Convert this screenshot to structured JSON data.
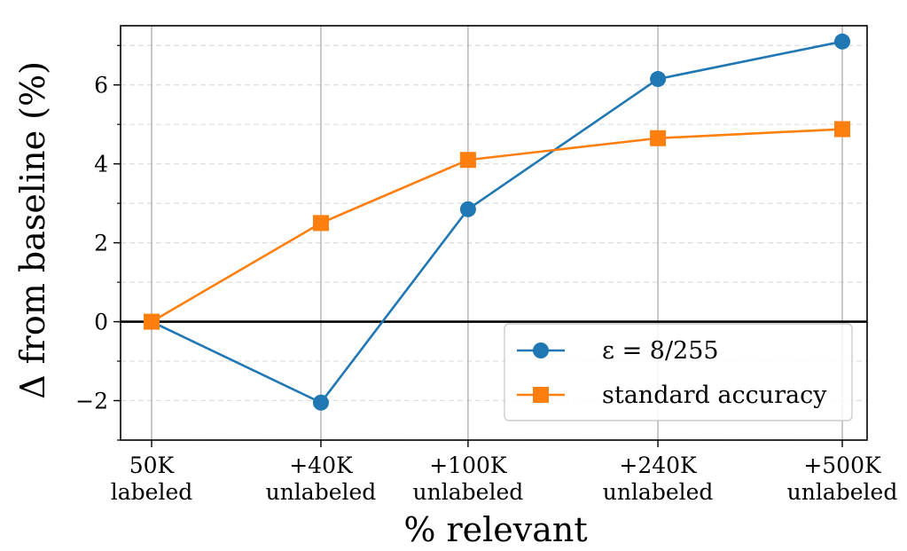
{
  "chart_data": {
    "type": "line",
    "title": "",
    "xlabel": "% relevant",
    "ylabel": "Δ from baseline (%)",
    "categories": [
      {
        "line1": "50K",
        "line2": "labeled"
      },
      {
        "line1": "+40K",
        "line2": "unlabeled"
      },
      {
        "line1": "+100K",
        "line2": "unlabeled"
      },
      {
        "line1": "+240K",
        "line2": "unlabeled"
      },
      {
        "line1": "+500K",
        "line2": "unlabeled"
      }
    ],
    "x": [
      50,
      90,
      150,
      290,
      550
    ],
    "x_scale": "log",
    "ylim": [
      -3,
      7.5
    ],
    "yticks": [
      -2,
      0,
      2,
      4,
      6
    ],
    "yminor_step": 1,
    "ygrid_step": 1,
    "zero_line": true,
    "grid": true,
    "legend_position": "lower-right",
    "series": [
      {
        "name": "ε = 8/255",
        "color": "#1f77b4",
        "marker": "circle",
        "values": [
          0,
          -2.05,
          2.85,
          6.15,
          7.1
        ]
      },
      {
        "name": "standard accuracy",
        "color": "#ff7f0e",
        "marker": "square",
        "values": [
          0,
          2.5,
          4.1,
          4.65,
          4.88
        ]
      }
    ]
  }
}
